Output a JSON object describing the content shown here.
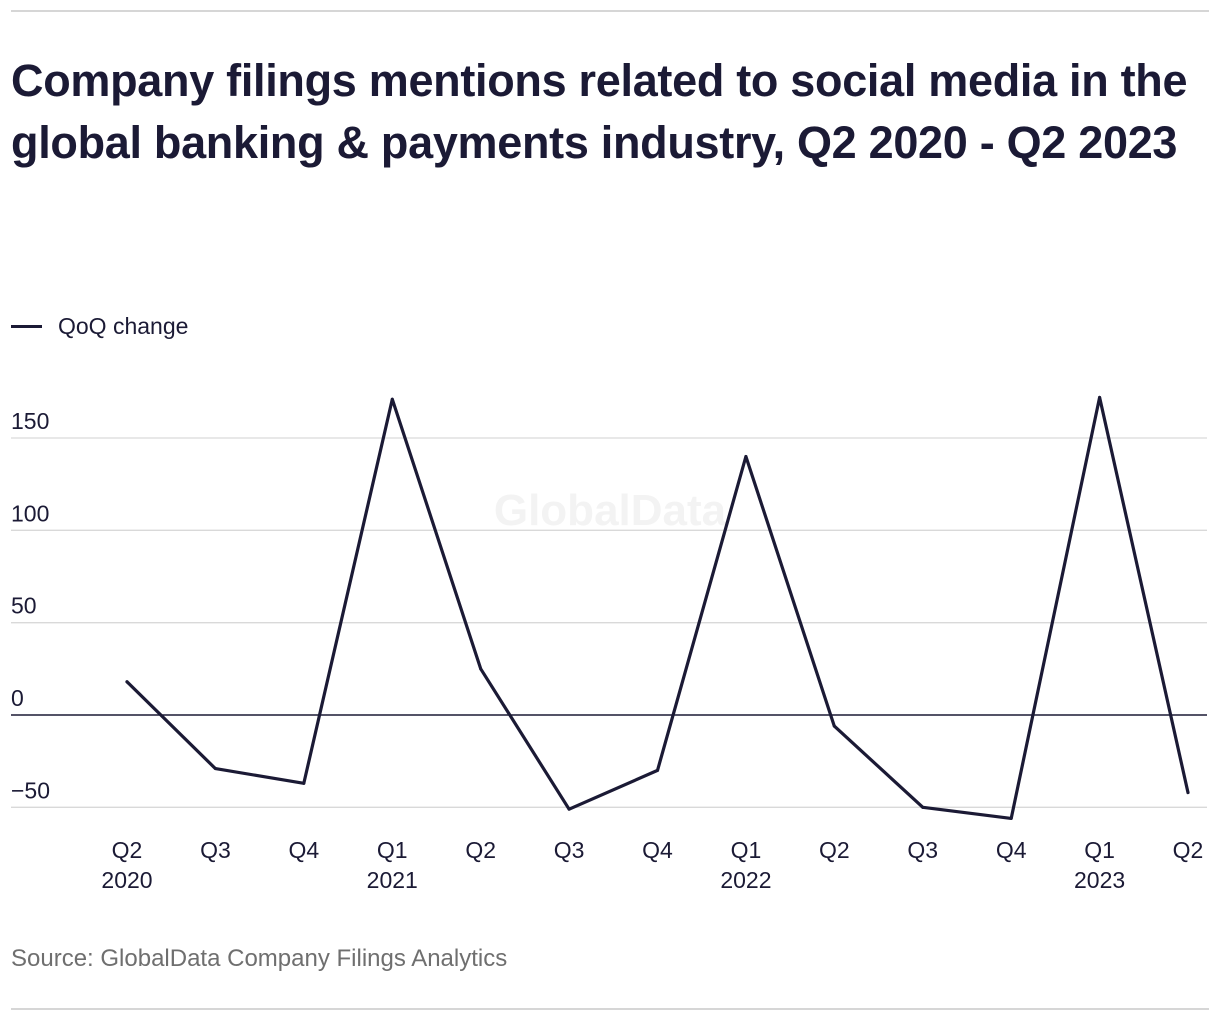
{
  "title": "Company filings mentions related to social media in the global banking & payments industry, Q2 2020 - Q2 2023",
  "source": "Source: GlobalData Company Filings Analytics",
  "watermark": "GlobalData",
  "colors": {
    "line": "#1b1a35",
    "grid": "#d9d9d9",
    "zero_line": "#1b1a35",
    "tick_text": "#1b1a35",
    "watermark": "#f3f3f3"
  },
  "chart_data": {
    "type": "line",
    "title": "Company filings mentions related to social media in the global banking & payments industry, Q2 2020 - Q2 2023",
    "xlabel": "",
    "ylabel": "",
    "ylim": [
      -50,
      150
    ],
    "yticks": [
      150,
      100,
      50,
      0,
      -50
    ],
    "ytick_labels": [
      "150",
      "100",
      "50",
      "0",
      "−50"
    ],
    "grid": true,
    "legend_position": "top-left",
    "categories": [
      {
        "quarter": "Q2",
        "year": "2020"
      },
      {
        "quarter": "Q3",
        "year": ""
      },
      {
        "quarter": "Q4",
        "year": ""
      },
      {
        "quarter": "Q1",
        "year": "2021"
      },
      {
        "quarter": "Q2",
        "year": ""
      },
      {
        "quarter": "Q3",
        "year": ""
      },
      {
        "quarter": "Q4",
        "year": ""
      },
      {
        "quarter": "Q1",
        "year": "2022"
      },
      {
        "quarter": "Q2",
        "year": ""
      },
      {
        "quarter": "Q3",
        "year": ""
      },
      {
        "quarter": "Q4",
        "year": ""
      },
      {
        "quarter": "Q1",
        "year": "2023"
      },
      {
        "quarter": "Q2",
        "year": ""
      }
    ],
    "series": [
      {
        "name": "QoQ change",
        "values": [
          18,
          -29,
          -37,
          171,
          25,
          -51,
          -30,
          140,
          -6,
          -50,
          -56,
          172,
          -42
        ]
      }
    ]
  }
}
